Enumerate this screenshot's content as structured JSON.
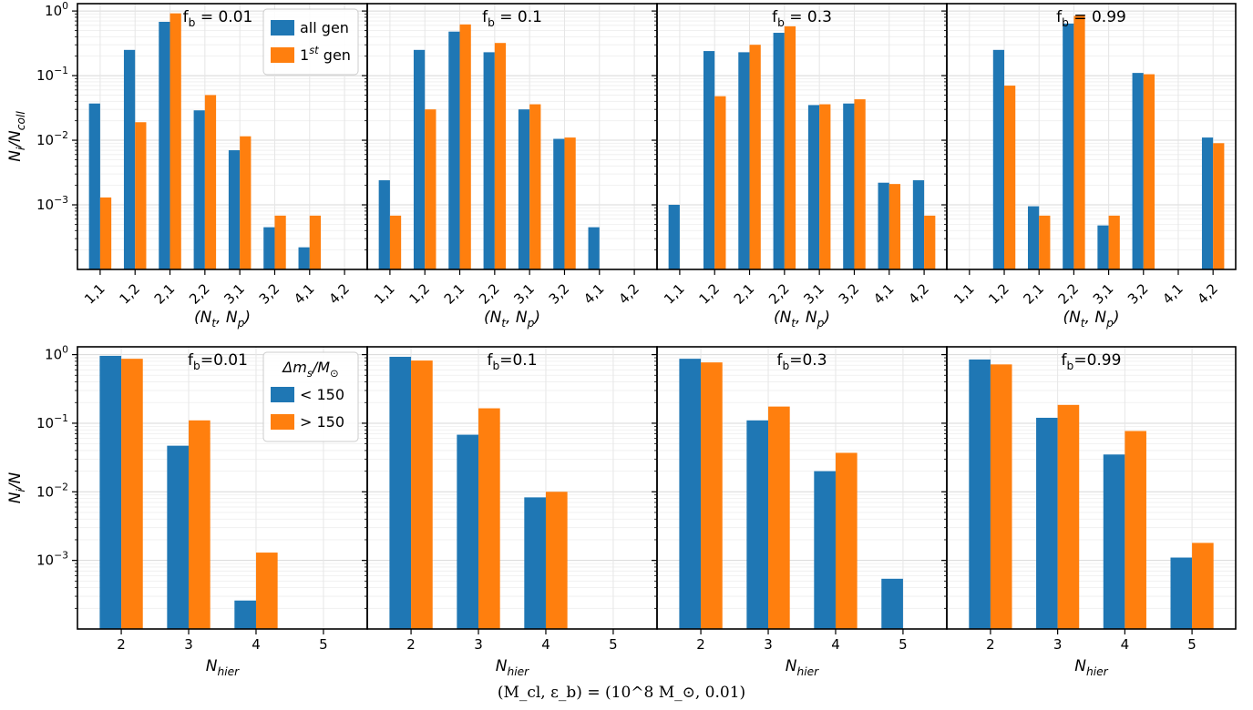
{
  "figure": {
    "caption": "(M_cl, ε_b) = (10^8 M_⊙, 0.01)",
    "colors": {
      "all_gen": "#1f77b4",
      "first_gen": "#ff7f0e"
    }
  },
  "chart_data": [
    {
      "type": "bar",
      "row": "top",
      "title": "f_b = 0.01",
      "xlabel": "(N_t, N_p)",
      "ylabel": "N_i/N_coll",
      "yscale": "log",
      "ylim": [
        0.0001,
        1.3
      ],
      "categories": [
        "1,1",
        "1,2",
        "2,1",
        "2,2",
        "3,1",
        "3,2",
        "4,1",
        "4,2"
      ],
      "series": [
        {
          "name": "all gen",
          "values": [
            0.037,
            0.25,
            0.68,
            0.029,
            0.007,
            0.00045,
            0.00022,
            null
          ]
        },
        {
          "name": "1st gen",
          "values": [
            0.0013,
            0.019,
            0.92,
            0.05,
            0.0115,
            0.00068,
            0.00068,
            null
          ]
        }
      ],
      "legend": {
        "position": "top-right",
        "entries": [
          "all gen",
          "1st gen"
        ]
      }
    },
    {
      "type": "bar",
      "row": "top",
      "title": "f_b = 0.1",
      "xlabel": "(N_t, N_p)",
      "ylabel": "",
      "yscale": "log",
      "ylim": [
        0.0001,
        1.3
      ],
      "categories": [
        "1,1",
        "1,2",
        "2,1",
        "2,2",
        "3,1",
        "3,2",
        "4,1",
        "4,2"
      ],
      "series": [
        {
          "name": "all gen",
          "values": [
            0.0024,
            0.25,
            0.48,
            0.23,
            0.03,
            0.0105,
            0.00045,
            null
          ]
        },
        {
          "name": "1st gen",
          "values": [
            0.00068,
            0.03,
            0.62,
            0.32,
            0.036,
            0.011,
            null,
            null
          ]
        }
      ]
    },
    {
      "type": "bar",
      "row": "top",
      "title": "f_b = 0.3",
      "xlabel": "(N_t, N_p)",
      "ylabel": "",
      "yscale": "log",
      "ylim": [
        0.0001,
        1.3
      ],
      "categories": [
        "1,1",
        "1,2",
        "2,1",
        "2,2",
        "3,1",
        "3,2",
        "4,1",
        "4,2"
      ],
      "series": [
        {
          "name": "all gen",
          "values": [
            0.001,
            0.24,
            0.23,
            0.46,
            0.035,
            0.037,
            0.0022,
            0.0024
          ]
        },
        {
          "name": "1st gen",
          "values": [
            null,
            0.048,
            0.3,
            0.58,
            0.036,
            0.043,
            0.0021,
            0.00068
          ]
        }
      ]
    },
    {
      "type": "bar",
      "row": "top",
      "title": "f_b = 0.99",
      "xlabel": "(N_t, N_p)",
      "ylabel": "",
      "yscale": "log",
      "ylim": [
        0.0001,
        1.3
      ],
      "categories": [
        "1,1",
        "1,2",
        "2,1",
        "2,2",
        "3,1",
        "3,2",
        "4,1",
        "4,2"
      ],
      "series": [
        {
          "name": "all gen",
          "values": [
            null,
            0.25,
            0.00095,
            0.64,
            0.00048,
            0.11,
            null,
            0.011
          ]
        },
        {
          "name": "1st gen",
          "values": [
            null,
            0.07,
            0.00068,
            0.84,
            0.00068,
            0.105,
            null,
            0.009
          ]
        }
      ]
    },
    {
      "type": "bar",
      "row": "bottom",
      "title": "f_b=0.01",
      "xlabel": "N_hier",
      "ylabel": "N_i/N",
      "yscale": "log",
      "ylim": [
        0.0001,
        1.3
      ],
      "categories": [
        "2",
        "3",
        "4",
        "5"
      ],
      "series": [
        {
          "name": "< 150",
          "values": [
            0.96,
            0.047,
            0.00026,
            null
          ]
        },
        {
          "name": "> 150",
          "values": [
            0.87,
            0.11,
            0.0013,
            null
          ]
        }
      ],
      "legend": {
        "position": "top-right",
        "title": "Δm_s/M_⊙",
        "entries": [
          "< 150",
          "> 150"
        ]
      }
    },
    {
      "type": "bar",
      "row": "bottom",
      "title": "f_b=0.1",
      "xlabel": "N_hier",
      "ylabel": "",
      "yscale": "log",
      "ylim": [
        0.0001,
        1.3
      ],
      "categories": [
        "2",
        "3",
        "4",
        "5"
      ],
      "series": [
        {
          "name": "< 150",
          "values": [
            0.93,
            0.068,
            0.0083,
            null
          ]
        },
        {
          "name": "> 150",
          "values": [
            0.82,
            0.165,
            0.01,
            null
          ]
        }
      ]
    },
    {
      "type": "bar",
      "row": "bottom",
      "title": "f_b=0.3",
      "xlabel": "N_hier",
      "ylabel": "",
      "yscale": "log",
      "ylim": [
        0.0001,
        1.3
      ],
      "categories": [
        "2",
        "3",
        "4",
        "5"
      ],
      "series": [
        {
          "name": "< 150",
          "values": [
            0.87,
            0.11,
            0.02,
            0.00054
          ]
        },
        {
          "name": "> 150",
          "values": [
            0.77,
            0.175,
            0.037,
            null
          ]
        }
      ]
    },
    {
      "type": "bar",
      "row": "bottom",
      "title": "f_b=0.99",
      "xlabel": "N_hier",
      "ylabel": "",
      "yscale": "log",
      "ylim": [
        0.0001,
        1.3
      ],
      "categories": [
        "2",
        "3",
        "4",
        "5"
      ],
      "series": [
        {
          "name": "< 150",
          "values": [
            0.85,
            0.12,
            0.035,
            0.0011
          ]
        },
        {
          "name": "> 150",
          "values": [
            0.72,
            0.185,
            0.077,
            0.0018
          ]
        }
      ]
    }
  ]
}
